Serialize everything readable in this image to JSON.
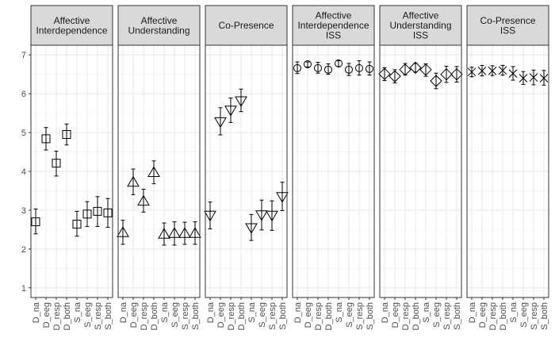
{
  "chart_data": {
    "type": "scatter",
    "subtype": "faceted-point-errorbar",
    "categories": [
      "D_na",
      "D_eeg",
      "D_resp",
      "D_both",
      "S_na",
      "S_eeg",
      "S_resp",
      "S_both"
    ],
    "y_ticks": [
      "1",
      "2",
      "3",
      "4",
      "5",
      "6",
      "7"
    ],
    "ylim": [
      0.75,
      7.25
    ],
    "grid": true,
    "legend": "none",
    "colors": {
      "panel_bg": "#ffffff",
      "strip_bg": "#d9d9d9",
      "grid_major": "#ebebeb",
      "grid_minor": "#f5f5f5",
      "border": "#333333",
      "marker": "#000000"
    },
    "panels": [
      {
        "title": [
          "Affective",
          "Interdependence"
        ],
        "marker": "square",
        "values": [
          2.7,
          4.84,
          4.21,
          4.95,
          2.64,
          2.9,
          2.97,
          2.93
        ],
        "err_low": [
          2.39,
          4.55,
          3.88,
          4.68,
          2.33,
          2.58,
          2.58,
          2.56
        ],
        "err_high": [
          3.03,
          5.13,
          4.52,
          5.22,
          2.97,
          3.22,
          3.35,
          3.3
        ]
      },
      {
        "title": [
          "Affective",
          "Understanding"
        ],
        "marker": "triangle-up",
        "values": [
          2.42,
          3.72,
          3.23,
          3.97,
          2.38,
          2.4,
          2.4,
          2.4
        ],
        "err_low": [
          2.12,
          3.4,
          2.95,
          3.68,
          2.1,
          2.1,
          2.12,
          2.12
        ],
        "err_high": [
          2.74,
          4.06,
          3.54,
          4.27,
          2.67,
          2.7,
          2.69,
          2.7
        ]
      },
      {
        "title": [
          "Co-Presence"
        ],
        "marker": "triangle-down",
        "values": [
          2.87,
          5.28,
          5.58,
          5.82,
          2.55,
          2.88,
          2.87,
          3.35
        ],
        "err_low": [
          2.52,
          4.94,
          5.26,
          5.54,
          2.22,
          2.49,
          2.48,
          2.99
        ],
        "err_high": [
          3.21,
          5.64,
          5.89,
          6.12,
          2.89,
          3.26,
          3.24,
          3.72
        ]
      },
      {
        "title": [
          "Affective",
          "Interdependence",
          "ISS"
        ],
        "marker": "circle",
        "values": [
          6.66,
          6.76,
          6.66,
          6.62,
          6.78,
          6.62,
          6.66,
          6.64
        ],
        "err_low": [
          6.52,
          6.69,
          6.53,
          6.5,
          6.7,
          6.47,
          6.48,
          6.48
        ],
        "err_high": [
          6.82,
          6.82,
          6.81,
          6.77,
          6.85,
          6.78,
          6.85,
          6.82
        ]
      },
      {
        "title": [
          "Affective",
          "Understanding",
          "ISS"
        ],
        "marker": "diamond",
        "values": [
          6.51,
          6.45,
          6.62,
          6.67,
          6.62,
          6.33,
          6.5,
          6.5
        ],
        "err_low": [
          6.34,
          6.28,
          6.48,
          6.56,
          6.45,
          6.13,
          6.29,
          6.3
        ],
        "err_high": [
          6.67,
          6.62,
          6.78,
          6.78,
          6.77,
          6.53,
          6.71,
          6.7
        ]
      },
      {
        "title": [
          "Co-Presence",
          "ISS"
        ],
        "marker": "asterisk",
        "values": [
          6.56,
          6.59,
          6.59,
          6.6,
          6.52,
          6.4,
          6.42,
          6.4
        ],
        "err_low": [
          6.44,
          6.46,
          6.47,
          6.48,
          6.35,
          6.24,
          6.23,
          6.22
        ],
        "err_high": [
          6.68,
          6.73,
          6.72,
          6.73,
          6.7,
          6.57,
          6.61,
          6.6
        ]
      }
    ]
  }
}
